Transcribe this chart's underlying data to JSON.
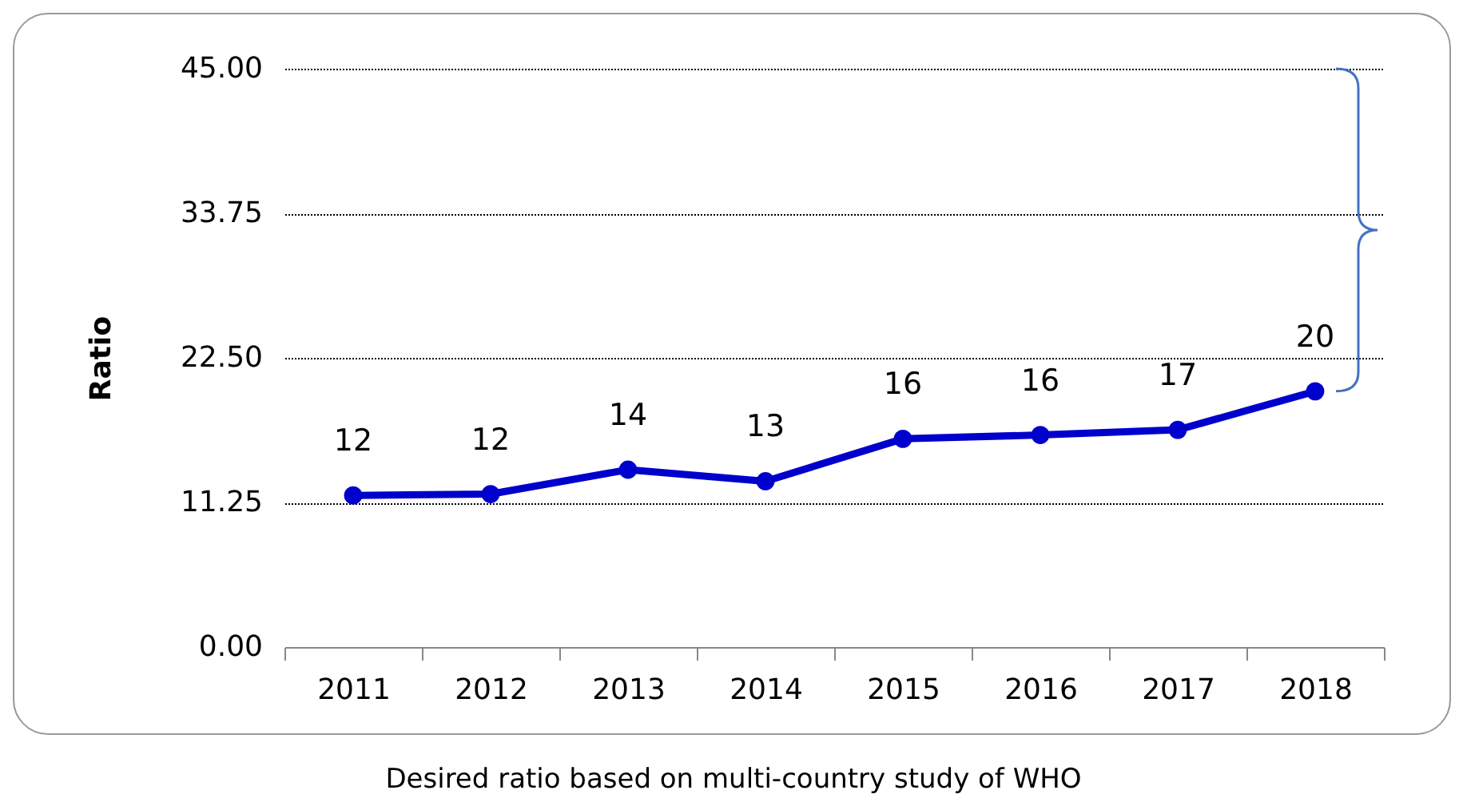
{
  "chart_data": {
    "type": "line",
    "ylabel": "Ratio",
    "categories": [
      "2011",
      "2012",
      "2013",
      "2014",
      "2015",
      "2016",
      "2017",
      "2018"
    ],
    "series": [
      {
        "color": "#0000cc",
        "values": [
          11.8,
          11.9,
          13.8,
          12.9,
          16.2,
          16.5,
          16.9,
          19.9
        ],
        "value_labels": [
          "12",
          "12",
          "14",
          "13",
          "16",
          "16",
          "17",
          "20"
        ]
      }
    ],
    "ylim": [
      0,
      45
    ],
    "yticks": [
      {
        "value": 0,
        "label": "0.00"
      },
      {
        "value": 11.25,
        "label": "11.25"
      },
      {
        "value": 22.5,
        "label": "22.50"
      },
      {
        "value": 33.75,
        "label": "33.75"
      },
      {
        "value": 45,
        "label": "45.00"
      }
    ],
    "grid": "y",
    "marker": "circle",
    "line_style": "solid",
    "legend": false,
    "annotations": [
      "Desired ratio based on multi-country study of WHO"
    ]
  }
}
